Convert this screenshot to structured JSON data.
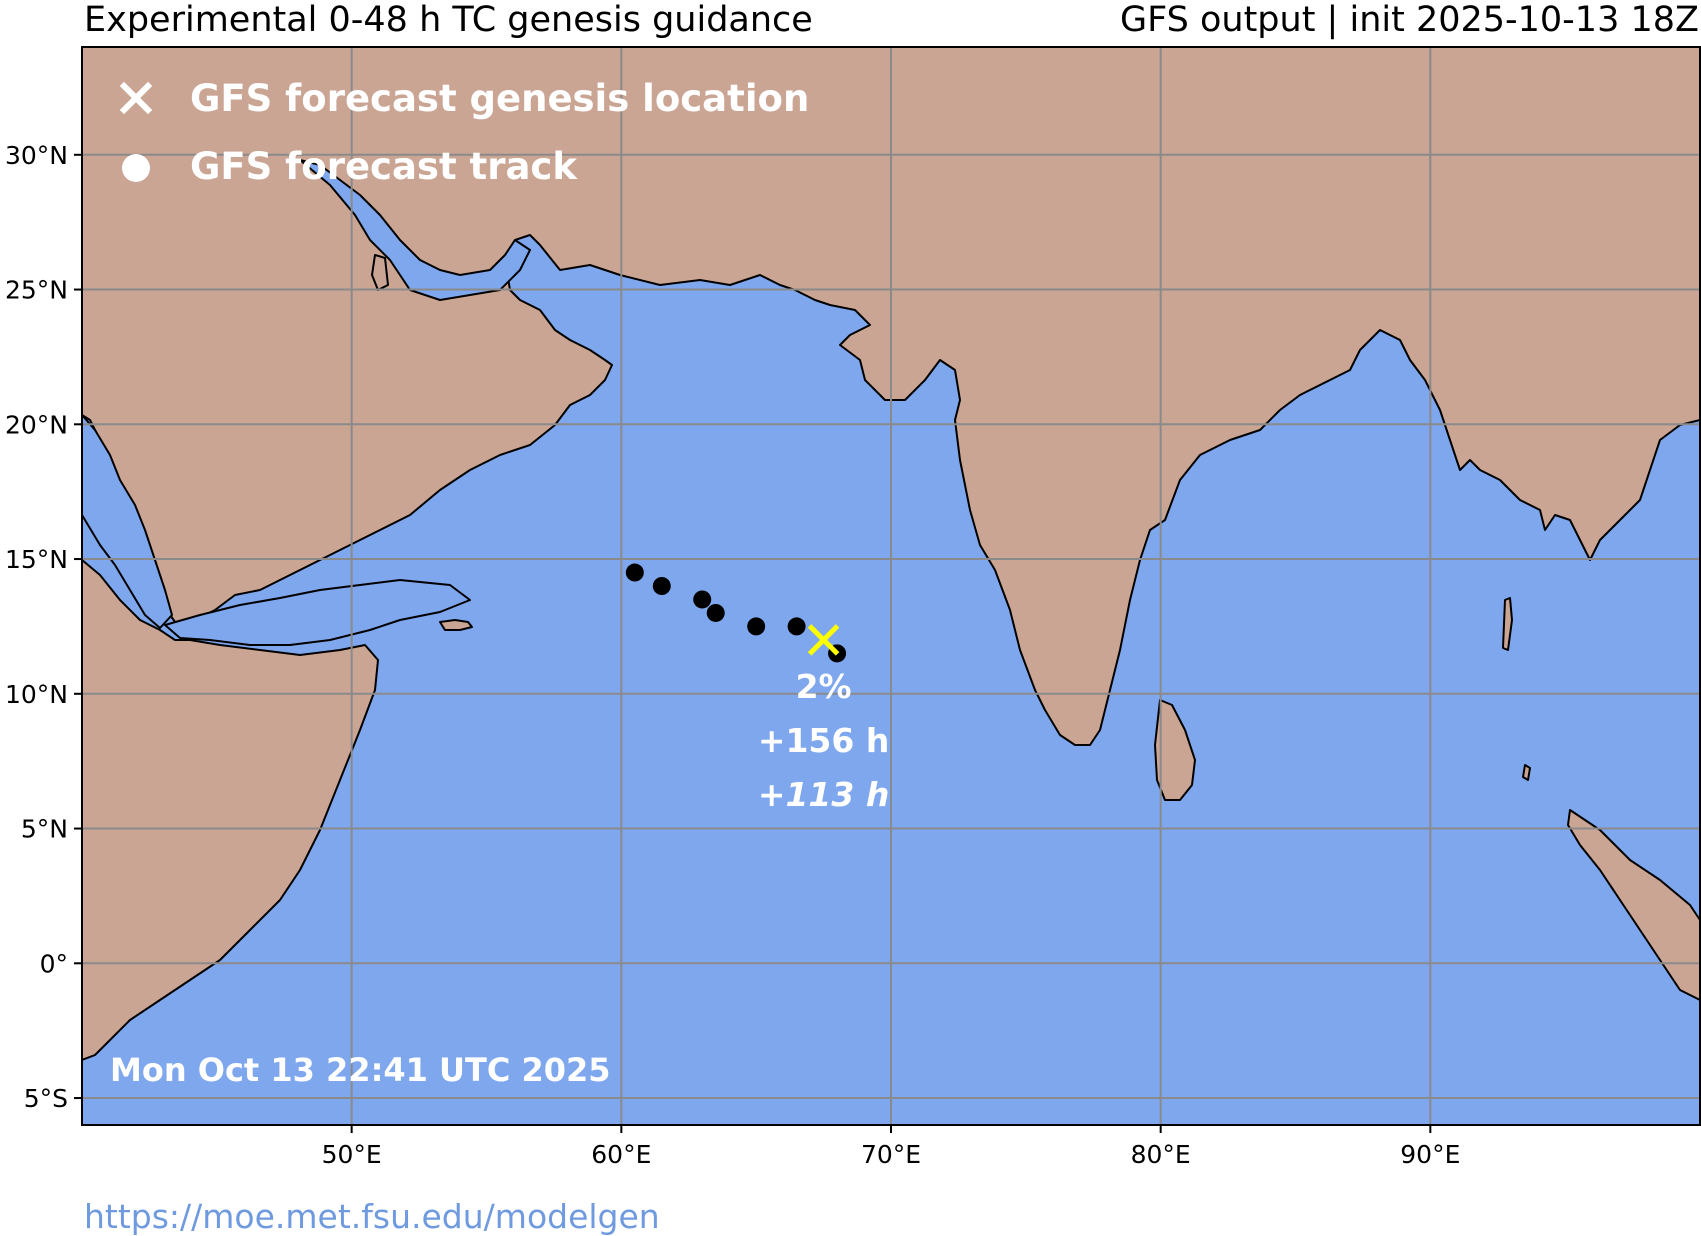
{
  "header": {
    "title": "Experimental 0-48 h TC genesis guidance",
    "subtitle": "GFS output | init 2025-10-13 18Z"
  },
  "legend": {
    "genesis_label": "GFS forecast genesis location",
    "track_label": "GFS forecast track"
  },
  "map": {
    "lon_range": [
      40,
      100
    ],
    "lat_range": [
      -6,
      34
    ],
    "lon_ticks": [
      {
        "value": 50,
        "label": "50°E"
      },
      {
        "value": 60,
        "label": "60°E"
      },
      {
        "value": 70,
        "label": "70°E"
      },
      {
        "value": 80,
        "label": "80°E"
      },
      {
        "value": 90,
        "label": "90°E"
      }
    ],
    "lat_ticks": [
      {
        "value": 30,
        "label": "30°N"
      },
      {
        "value": 25,
        "label": "25°N"
      },
      {
        "value": 20,
        "label": "20°N"
      },
      {
        "value": 15,
        "label": "15°N"
      },
      {
        "value": 10,
        "label": "10°N"
      },
      {
        "value": 5,
        "label": "5°N"
      },
      {
        "value": 0,
        "label": "0°"
      },
      {
        "value": -5,
        "label": "5°S"
      }
    ],
    "grid": true,
    "colors": {
      "ocean": "#7fa7ee",
      "land": "#cba594",
      "gridline": "#8a8a8a",
      "track": "#000000",
      "genesis_marker": "#ffff00",
      "annotation": "#ffffff"
    }
  },
  "forecast": {
    "track_points": [
      {
        "lon": 60.5,
        "lat": 14.5
      },
      {
        "lon": 61.5,
        "lat": 14.0
      },
      {
        "lon": 63.0,
        "lat": 13.5
      },
      {
        "lon": 63.5,
        "lat": 13.0
      },
      {
        "lon": 65.0,
        "lat": 12.5
      },
      {
        "lon": 66.5,
        "lat": 12.5
      },
      {
        "lon": 68.0,
        "lat": 11.5
      }
    ],
    "genesis": {
      "lon": 67.5,
      "lat": 12.0
    },
    "probability": "2%",
    "lead_time": "+156 h",
    "secondary_lead_time": "+113 h"
  },
  "timestamp": "Mon Oct 13 22:41 UTC 2025",
  "footer": {
    "url": "https://moe.met.fsu.edu/modelgen"
  }
}
